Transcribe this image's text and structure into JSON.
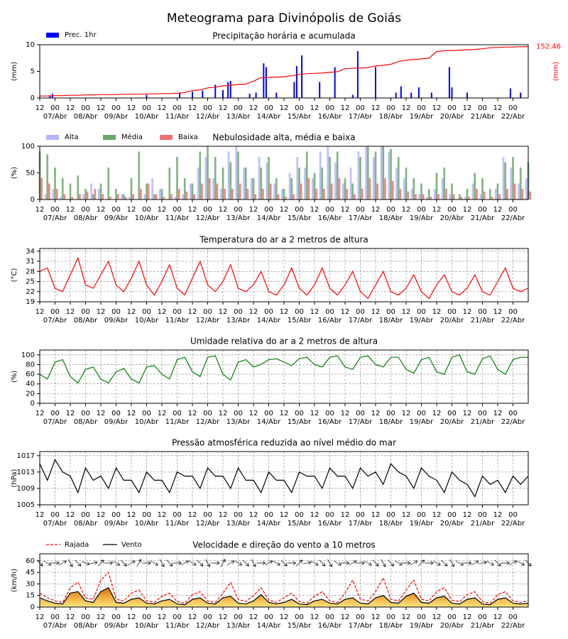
{
  "title": "Meteograma para Divinópolis de Goiás",
  "time": {
    "x": [
      0,
      6,
      12,
      18,
      24,
      30,
      36,
      42,
      48,
      54,
      60,
      66,
      72,
      78,
      84,
      90,
      96,
      102,
      108,
      114,
      120,
      126,
      132,
      138,
      144,
      150,
      156,
      162,
      168,
      174,
      180,
      186,
      192,
      198,
      204,
      210,
      216,
      222,
      228,
      234,
      240,
      246,
      252,
      258,
      264,
      270,
      276,
      282,
      288,
      294,
      300,
      306,
      312,
      318,
      324,
      330,
      336,
      342,
      348,
      354,
      360,
      366,
      372,
      378,
      384
    ],
    "xlim": [
      0,
      384
    ],
    "xticks": [
      {
        "value": 0,
        "label": "12"
      },
      {
        "value": 12,
        "label": "00"
      },
      {
        "value": 24,
        "label": "12"
      },
      {
        "value": 36,
        "label": "00"
      },
      {
        "value": 48,
        "label": "12"
      },
      {
        "value": 60,
        "label": "00"
      },
      {
        "value": 72,
        "label": "12"
      },
      {
        "value": 84,
        "label": "00"
      },
      {
        "value": 96,
        "label": "12"
      },
      {
        "value": 108,
        "label": "00"
      },
      {
        "value": 120,
        "label": "12"
      },
      {
        "value": 132,
        "label": "00"
      },
      {
        "value": 144,
        "label": "12"
      },
      {
        "value": 156,
        "label": "00"
      },
      {
        "value": 168,
        "label": "12"
      },
      {
        "value": 180,
        "label": "00"
      },
      {
        "value": 192,
        "label": "12"
      },
      {
        "value": 204,
        "label": "00"
      },
      {
        "value": 216,
        "label": "12"
      },
      {
        "value": 228,
        "label": "00"
      },
      {
        "value": 240,
        "label": "12"
      },
      {
        "value": 252,
        "label": "00"
      },
      {
        "value": 264,
        "label": "12"
      },
      {
        "value": 276,
        "label": "00"
      },
      {
        "value": 288,
        "label": "12"
      },
      {
        "value": 300,
        "label": "00"
      },
      {
        "value": 312,
        "label": "12"
      },
      {
        "value": 324,
        "label": "00"
      },
      {
        "value": 336,
        "label": "12"
      },
      {
        "value": 348,
        "label": "00"
      },
      {
        "value": 360,
        "label": "12"
      },
      {
        "value": 372,
        "label": "00"
      }
    ],
    "date_labels": [
      {
        "value": 12,
        "label": "07/Abr"
      },
      {
        "value": 36,
        "label": "08/Abr"
      },
      {
        "value": 60,
        "label": "09/Abr"
      },
      {
        "value": 84,
        "label": "10/Abr"
      },
      {
        "value": 108,
        "label": "11/Abr"
      },
      {
        "value": 132,
        "label": "12/Abr"
      },
      {
        "value": 156,
        "label": "13/Abr"
      },
      {
        "value": 180,
        "label": "14/Abr"
      },
      {
        "value": 204,
        "label": "15/Abr"
      },
      {
        "value": 228,
        "label": "16/Abr"
      },
      {
        "value": 252,
        "label": "17/Abr"
      },
      {
        "value": 276,
        "label": "18/Abr"
      },
      {
        "value": 300,
        "label": "19/Abr"
      },
      {
        "value": 324,
        "label": "20/Abr"
      },
      {
        "value": 348,
        "label": "21/Abr"
      },
      {
        "value": 372,
        "label": "22/Abr"
      }
    ]
  },
  "chart_data": [
    {
      "type": "combo",
      "title": "Precipitação horária e acumulada",
      "ylabel": "(mm)",
      "y2label": "(mm)",
      "ylim": [
        0,
        10
      ],
      "yticks": [
        0,
        5,
        10
      ],
      "y2lim": [
        0,
        158
      ],
      "y2ticks": [
        152.46
      ],
      "grid": false,
      "series": [
        {
          "name": "Prec. 1hr",
          "color": "#0000ff",
          "x": [
            8,
            10,
            84,
            110,
            120,
            128,
            138,
            144,
            148,
            150,
            165,
            170,
            176,
            178,
            186,
            200,
            202,
            206,
            220,
            232,
            246,
            250,
            264,
            280,
            284,
            292,
            298,
            308,
            322,
            324,
            336,
            370,
            378
          ],
          "values": [
            0.5,
            0.8,
            0.6,
            0.9,
            1.2,
            1.4,
            2.5,
            1.5,
            3,
            3.2,
            0.8,
            1,
            6.5,
            5.8,
            1,
            3,
            6,
            8,
            3,
            5.8,
            0.6,
            8.8,
            5.8,
            1,
            2.2,
            1,
            2,
            1,
            5.8,
            2,
            1,
            1.8,
            1
          ]
        },
        {
          "color": "#ff0000",
          "axis": "y2",
          "values": [
            6,
            6,
            7,
            7,
            8,
            8,
            9,
            9,
            10,
            10,
            10,
            11,
            11,
            11,
            12,
            12,
            13,
            13,
            14,
            16,
            22,
            24,
            30,
            32,
            36,
            38,
            40,
            41,
            50,
            60,
            61,
            62,
            63,
            66,
            70,
            72,
            73,
            74,
            76,
            78,
            87,
            88,
            89,
            90,
            95,
            97,
            100,
            108,
            112,
            114,
            116,
            118,
            138,
            140,
            141,
            142,
            143,
            144,
            146,
            149,
            150,
            151,
            151,
            152,
            152.46
          ]
        }
      ]
    },
    {
      "type": "bar",
      "title": "Nebulosidade alta, média e baixa",
      "ylabel": "(%)",
      "ylim": [
        0,
        100
      ],
      "yticks": [
        0,
        50,
        100
      ],
      "grid": false,
      "series": [
        {
          "name": "Alta",
          "color": "#b3b3ff",
          "values": [
            0,
            10,
            20,
            5,
            0,
            0,
            10,
            30,
            20,
            0,
            0,
            10,
            5,
            0,
            10,
            40,
            20,
            0,
            5,
            10,
            30,
            60,
            80,
            40,
            20,
            90,
            100,
            60,
            40,
            80,
            70,
            30,
            20,
            50,
            80,
            60,
            40,
            90,
            100,
            70,
            30,
            60,
            90,
            100,
            80,
            100,
            90,
            60,
            40,
            20,
            10,
            5,
            20,
            40,
            10,
            0,
            5,
            30,
            10,
            0,
            20,
            80,
            60,
            30,
            40
          ]
        },
        {
          "name": "Média",
          "color": "#6aa86a",
          "values": [
            90,
            85,
            60,
            40,
            30,
            45,
            20,
            10,
            30,
            60,
            20,
            10,
            40,
            90,
            30,
            10,
            20,
            60,
            80,
            40,
            30,
            90,
            100,
            80,
            60,
            70,
            90,
            60,
            40,
            60,
            80,
            40,
            20,
            40,
            60,
            90,
            50,
            60,
            80,
            90,
            40,
            30,
            80,
            100,
            90,
            100,
            95,
            80,
            60,
            40,
            30,
            20,
            50,
            60,
            30,
            10,
            20,
            50,
            40,
            20,
            30,
            70,
            80,
            60,
            70
          ]
        },
        {
          "name": "Baixa",
          "color": "#f07070",
          "values": [
            40,
            30,
            20,
            10,
            5,
            10,
            15,
            20,
            10,
            5,
            10,
            5,
            10,
            20,
            30,
            10,
            5,
            10,
            20,
            15,
            10,
            30,
            40,
            30,
            20,
            20,
            30,
            20,
            10,
            20,
            30,
            10,
            5,
            10,
            30,
            40,
            20,
            20,
            30,
            40,
            20,
            10,
            20,
            40,
            30,
            40,
            35,
            20,
            15,
            10,
            10,
            5,
            10,
            20,
            10,
            5,
            5,
            20,
            15,
            5,
            10,
            20,
            30,
            20,
            15
          ]
        }
      ]
    },
    {
      "type": "line",
      "title": "Temperatura do ar a 2 metros de altura",
      "ylabel": "(°C)",
      "ylim": [
        19,
        34.8
      ],
      "yticks": [
        19,
        22,
        25,
        28,
        31,
        34
      ],
      "grid": true,
      "series": [
        {
          "color": "#ff0000",
          "values": [
            28,
            29,
            23,
            22,
            27,
            32,
            24,
            23,
            27,
            31,
            24,
            22,
            26,
            31,
            24,
            21,
            25,
            30,
            23,
            21,
            26,
            31,
            24,
            22,
            25,
            30,
            23,
            22,
            24,
            28,
            22,
            21,
            24,
            29,
            23,
            21,
            24,
            29,
            23,
            21,
            24,
            28,
            22,
            20,
            24,
            28,
            22,
            21,
            23,
            27,
            22,
            20,
            24,
            27,
            22,
            21,
            23,
            27,
            22,
            21,
            25,
            29,
            23,
            22,
            23
          ]
        }
      ]
    },
    {
      "type": "line",
      "title": "Umidade relativa do ar a 2 metros de altura",
      "ylabel": "(%)",
      "ylim": [
        0,
        110
      ],
      "yticks": [
        0,
        20,
        40,
        60,
        80,
        100
      ],
      "grid": true,
      "series": [
        {
          "color": "#008000",
          "values": [
            60,
            50,
            85,
            90,
            55,
            42,
            70,
            75,
            50,
            42,
            65,
            72,
            50,
            42,
            75,
            78,
            60,
            50,
            90,
            95,
            65,
            55,
            95,
            98,
            60,
            48,
            85,
            90,
            75,
            80,
            90,
            92,
            85,
            78,
            92,
            95,
            80,
            75,
            95,
            98,
            75,
            70,
            95,
            98,
            80,
            75,
            95,
            95,
            70,
            62,
            90,
            95,
            65,
            60,
            95,
            100,
            65,
            60,
            92,
            98,
            70,
            60,
            90,
            95,
            95
          ]
        }
      ]
    },
    {
      "type": "line",
      "title": "Pressão atmosférica reduzida ao nível médio do mar",
      "ylabel": "(hPa)",
      "ylim": [
        1005,
        1018
      ],
      "yticks": [
        1005,
        1009,
        1013,
        1017
      ],
      "grid": true,
      "series": [
        {
          "color": "#000000",
          "values": [
            1015,
            1011,
            1016,
            1013,
            1012,
            1008,
            1014,
            1011,
            1012,
            1009,
            1014,
            1011,
            1011,
            1008,
            1013,
            1011,
            1011,
            1008,
            1013,
            1012,
            1012,
            1009,
            1014,
            1012,
            1012,
            1009,
            1014,
            1011,
            1011,
            1008,
            1013,
            1011,
            1011,
            1008,
            1013,
            1012,
            1012,
            1009,
            1014,
            1012,
            1012,
            1009,
            1014,
            1012,
            1013,
            1010,
            1015,
            1013,
            1012,
            1009,
            1014,
            1012,
            1011,
            1008,
            1013,
            1011,
            1010,
            1007,
            1012,
            1010,
            1011,
            1008,
            1012,
            1010,
            1012
          ]
        }
      ]
    },
    {
      "type": "wind",
      "title": "Velocidade e direção do vento a 10 metros",
      "ylabel": "(km/h)",
      "ylim": [
        0,
        69
      ],
      "yticks": [
        0,
        15,
        30,
        45,
        60
      ],
      "grid": true,
      "series": [
        {
          "name": "Rajada",
          "color": "#ff0000",
          "dash": true,
          "values": [
            18,
            12,
            8,
            6,
            25,
            32,
            12,
            10,
            35,
            45,
            10,
            8,
            18,
            22,
            8,
            6,
            14,
            18,
            7,
            5,
            16,
            20,
            8,
            6,
            18,
            32,
            10,
            7,
            15,
            25,
            9,
            6,
            12,
            18,
            7,
            5,
            14,
            20,
            8,
            6,
            18,
            35,
            10,
            8,
            20,
            38,
            10,
            8,
            22,
            35,
            10,
            8,
            20,
            25,
            9,
            7,
            16,
            20,
            7,
            5,
            16,
            20,
            8,
            6,
            8
          ]
        },
        {
          "name": "Vento",
          "color": "#000000",
          "values": [
            12,
            8,
            5,
            4,
            18,
            20,
            8,
            6,
            20,
            25,
            6,
            5,
            10,
            12,
            5,
            4,
            8,
            10,
            4,
            3,
            10,
            12,
            5,
            4,
            12,
            14,
            5,
            4,
            8,
            16,
            6,
            4,
            6,
            10,
            4,
            3,
            8,
            10,
            5,
            4,
            10,
            12,
            5,
            4,
            12,
            15,
            6,
            5,
            14,
            18,
            6,
            5,
            12,
            14,
            5,
            4,
            10,
            12,
            4,
            3,
            10,
            12,
            5,
            4,
            5
          ]
        }
      ],
      "direction": [
        45,
        60,
        90,
        120,
        30,
        45,
        70,
        100,
        135,
        90,
        60,
        45,
        120,
        150,
        90,
        60,
        30,
        45,
        90,
        120,
        60,
        45,
        30,
        90,
        150,
        120,
        60,
        45,
        30,
        90,
        120,
        60,
        45,
        90,
        135,
        100,
        60,
        45,
        30,
        60,
        90,
        120,
        90,
        60,
        45,
        30,
        45,
        60,
        90,
        120,
        135,
        90,
        60,
        45,
        30,
        60,
        90,
        120,
        100,
        60,
        45,
        90,
        120,
        60,
        45
      ]
    }
  ]
}
